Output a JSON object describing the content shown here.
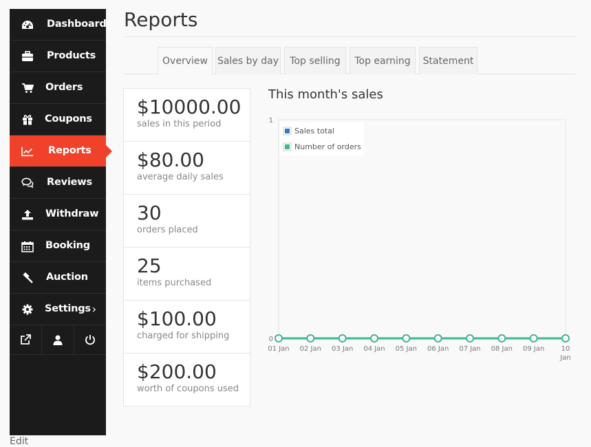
{
  "sidebar": {
    "items": [
      {
        "label": "Dashboard",
        "icon": "dashboard-icon"
      },
      {
        "label": "Products",
        "icon": "briefcase-icon"
      },
      {
        "label": "Orders",
        "icon": "cart-icon"
      },
      {
        "label": "Coupons",
        "icon": "gift-icon"
      },
      {
        "label": "Reports",
        "icon": "chart-line-icon",
        "active": true
      },
      {
        "label": "Reviews",
        "icon": "comments-icon"
      },
      {
        "label": "Withdraw",
        "icon": "upload-icon"
      },
      {
        "label": "Booking",
        "icon": "calendar-icon"
      },
      {
        "label": "Auction",
        "icon": "gavel-icon"
      },
      {
        "label": "Settings",
        "icon": "gear-icon"
      }
    ],
    "bottom_icons": [
      "external-link-icon",
      "user-icon",
      "power-icon"
    ]
  },
  "edit_link": "Edit",
  "page": {
    "title": "Reports",
    "tabs": [
      "Overview",
      "Sales by day",
      "Top selling",
      "Top earning",
      "Statement"
    ],
    "active_tab": "Overview"
  },
  "stats": [
    {
      "value": "$10000.00",
      "caption": "sales in this period"
    },
    {
      "value": "$80.00",
      "caption": "average daily sales"
    },
    {
      "value": "30",
      "caption": "orders placed"
    },
    {
      "value": "25",
      "caption": "items purchased"
    },
    {
      "value": "$100.00",
      "caption": "charged for shipping"
    },
    {
      "value": "$200.00",
      "caption": "worth of coupons used"
    }
  ],
  "chart_title": "This month's sales",
  "colors": {
    "sidebar_bg": "#1b1b1b",
    "accent": "#f0422b",
    "sales_total": "#2f7bc8",
    "orders": "#3cb68c"
  },
  "chart_data": {
    "type": "line",
    "x": [
      "01 Jan",
      "02 Jan",
      "03 Jan",
      "04 Jan",
      "05 Jan",
      "06 Jan",
      "07 Jan",
      "08 Jan",
      "09 Jan",
      "10 Jan"
    ],
    "ylim": [
      0,
      1
    ],
    "yticks": [
      "0",
      "1"
    ],
    "legend_position": "top-left",
    "series": [
      {
        "name": "Sales total",
        "color": "#2f7bc8",
        "values": [
          0,
          0,
          0,
          0,
          0,
          0,
          0,
          0,
          0,
          0
        ]
      },
      {
        "name": "Number of orders",
        "color": "#3cb68c",
        "values": [
          0,
          0,
          0,
          0,
          0,
          0,
          0,
          0,
          0,
          0
        ]
      }
    ]
  }
}
